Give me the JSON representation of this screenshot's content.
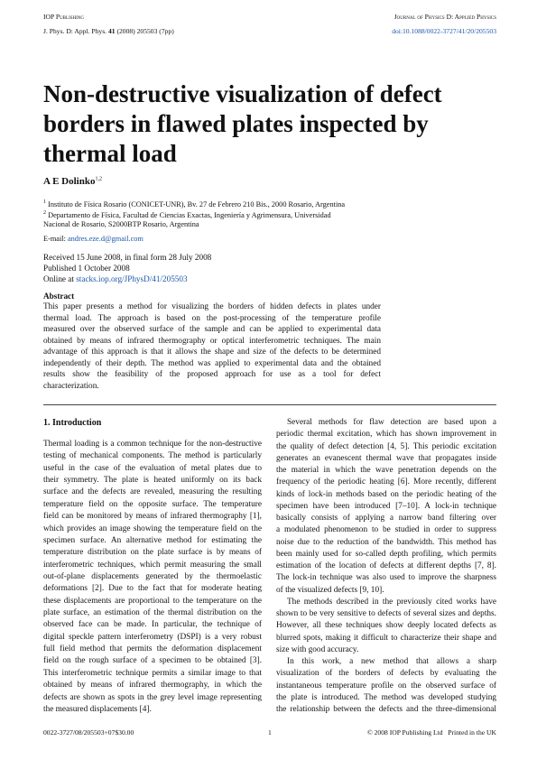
{
  "header": {
    "publisher": "IOP Publishing",
    "journal": "Journal of Physics D: Applied Physics",
    "citation_journal": "J. Phys. D: Appl. Phys.",
    "citation_volume": "41",
    "citation_rest": "(2008) 205503 (7pp)",
    "doi": "doi:10.1088/0022-3727/41/20/205503"
  },
  "title": [
    "Non-destructive visualization of defect",
    "borders in flawed plates inspected by",
    "thermal load"
  ],
  "author": {
    "name": "A E Dolinko",
    "affiliation_marks": "1,2"
  },
  "affiliations": [
    {
      "mark": "1",
      "lines": [
        "Instituto de Física Rosario (CONICET-UNR), Bv. 27 de Febrero 210 Bis., 2000 Rosario, Argentina"
      ]
    },
    {
      "mark": "2",
      "lines": [
        "Departamento de Física, Facultad de Ciencias Exactas, Ingeniería y Agrimensura, Universidad",
        "Nacional de Rosario, S2000BTP Rosario, Argentina"
      ]
    }
  ],
  "email": {
    "label": "E-mail:",
    "address": "andres.eze.d@gmail.com"
  },
  "dates": {
    "received": "Received 15 June 2008, in final form 28 July 2008",
    "published": "Published 1 October 2008",
    "online_label": "Online at",
    "online_url": "stacks.iop.org/JPhysD/41/205503"
  },
  "abstract": {
    "heading": "Abstract",
    "lines": [
      "This paper presents a method for visualizing the borders of hidden defects in plates under",
      "thermal load. The approach is based on the post-processing of the temperature profile",
      "measured over the observed surface of the sample and can be applied to experimental data",
      "obtained by means of infrared thermography or optical interferometric techniques. The main",
      "advantage of this approach is that it allows the shape and size of the defects to be determined",
      "independently of their depth. The method was applied to experimental data and the obtained",
      "results show the feasibility of the proposed approach for use as a tool for defect",
      "characterization."
    ]
  },
  "section": {
    "heading": "1. Introduction",
    "left_column": [
      {
        "lines": [
          "Thermal loading is a common technique for the non-destructive",
          "testing of mechanical components. The method is particularly",
          "useful in the case of the evaluation of metal plates due to",
          "their symmetry. The plate is heated uniformly on its back",
          "surface and the defects are revealed, measuring the resulting",
          "temperature field on the opposite surface. The temperature",
          "field can be monitored by means of infrared thermography [1],",
          "which provides an image showing the temperature field on the",
          "specimen surface. An alternative method for estimating the",
          "temperature distribution on the plate surface is by means of",
          "interferometric techniques, which permit measuring the small",
          "out-of-plane displacements generated by the thermoelastic",
          "deformations [2]. Due to the fact that for moderate heating",
          "these displacements are proportional to the temperature on the",
          "plate surface, an estimation of the thermal distribution on the",
          "observed face can be made. In particular, the technique of",
          "digital speckle pattern interferometry (DSPI) is a very robust",
          "full field method that permits the deformation displacement",
          "field on the rough surface of a specimen to be obtained [3].",
          "This interferometric technique permits a similar image to that",
          "obtained by means of infrared thermography, in which the",
          "defects are shown as spots in the grey level image representing",
          "the measured displacements [4]."
        ]
      }
    ],
    "right_column": [
      {
        "lines": [
          "Several methods for flaw detection are based upon a",
          "periodic thermal excitation, which has shown improvement in",
          "the quality of defect detection [4, 5]. This periodic excitation",
          "generates an evanescent thermal wave that propagates inside",
          "the material in which the wave penetration depends on the",
          "frequency of the periodic heating [6]. More recently, different",
          "kinds of lock-in methods based on the periodic heating of the",
          "specimen have been introduced [7–10]. A lock-in technique",
          "basically consists of applying a narrow band filtering over",
          "a modulated phenomenon to be studied in order to suppress",
          "noise due to the reduction of the bandwidth. This method has",
          "been mainly used for so-called depth profiling, which permits",
          "estimation of the location of defects at different depths [7, 8].",
          "The lock-in technique was also used to improve the sharpness",
          "of the visualized defects [9, 10]."
        ]
      },
      {
        "lines": [
          "The methods described in the previously cited works have",
          "shown to be very sensitive to defects of several sizes and depths.",
          "However, all these techniques show deeply located defects as",
          "blurred spots, making it difficult to characterize their shape and",
          "size with good accuracy."
        ]
      },
      {
        "lines": [
          "In this work, a new method that allows a sharp",
          "visualization of the borders of defects by evaluating the",
          "instantaneous temperature profile on the observed surface of",
          "the plate is introduced. The method was developed studying",
          "the relationship between the defects and the three-dimensional"
        ]
      }
    ]
  },
  "footer": {
    "code": "0022-3727/08/205503+07$30.00",
    "page": "1",
    "copyright": "© 2008 IOP Publishing Ltd",
    "printed": "Printed in the UK"
  }
}
